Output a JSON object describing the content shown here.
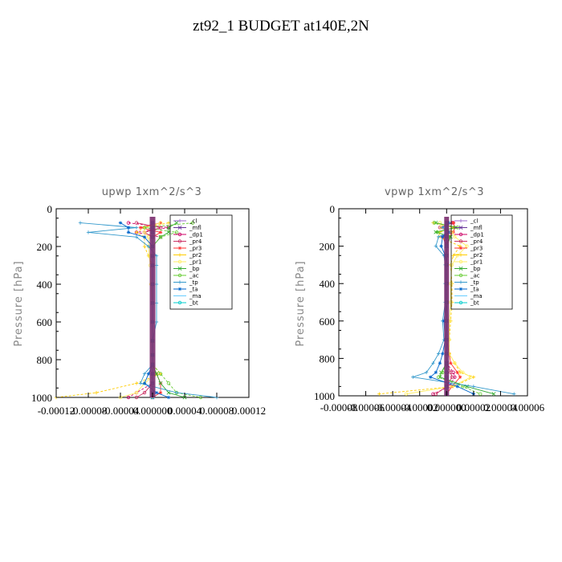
{
  "figure": {
    "title": "zt92_1  BUDGET at140E,2N"
  },
  "chart_data": [
    {
      "type": "line",
      "title": "upwp   1xm^2/s^3",
      "ylabel": "Pressure [hPa]",
      "xlabel": "",
      "xlim": [
        -0.00012,
        0.00012
      ],
      "ylim": [
        1000,
        0
      ],
      "xticks": [
        -0.00012,
        -8e-05,
        -4e-05,
        0,
        4e-05,
        8e-05,
        0.00012
      ],
      "xtick_labels": [
        "-0.00012",
        "-0.00008",
        "-0.00004",
        "0.000000",
        "0.00004",
        "0.00008",
        "0.00012"
      ],
      "yticks": [
        0,
        200,
        400,
        600,
        800,
        1000
      ],
      "ytick_labels": [
        "0",
        "200",
        "400",
        "600",
        "800",
        "1000"
      ],
      "grid": false,
      "legend_position": "top-right",
      "pressure": [
        75,
        100,
        125,
        150,
        200,
        250,
        300,
        400,
        500,
        600,
        700,
        775,
        825,
        875,
        925,
        975,
        1000
      ],
      "series": [
        {
          "name": "_cl",
          "color": "#9966cc",
          "marker": "+",
          "values": [
            0,
            0,
            0,
            0,
            0,
            0,
            0,
            0,
            0,
            0,
            0,
            0,
            0,
            0,
            0,
            0,
            0
          ]
        },
        {
          "name": "_mfl",
          "color": "#663399",
          "marker": "x",
          "values": [
            0,
            0,
            0,
            0,
            0,
            0,
            0,
            0,
            0,
            0,
            0,
            0,
            0,
            0,
            0,
            0,
            0
          ]
        },
        {
          "name": "_dp1",
          "color": "#cc0066",
          "marker": "o",
          "values": [
            -3e-05,
            2e-05,
            -2e-05,
            1e-05,
            0,
            0,
            0,
            0,
            0,
            0,
            0,
            0,
            0,
            0,
            0,
            -2e-05,
            -3e-05
          ]
        },
        {
          "name": "_pr4",
          "color": "#cc3366",
          "marker": "o",
          "values": [
            -2e-05,
            1e-05,
            -1e-05,
            0,
            0,
            0,
            0,
            0,
            0,
            0,
            0,
            0,
            0,
            0,
            0,
            -1e-05,
            -2e-05
          ]
        },
        {
          "name": "_pr3",
          "color": "#ff3333",
          "marker": "*",
          "values": [
            1e-05,
            -1.5e-05,
            1e-05,
            0,
            0,
            0,
            0,
            0,
            0,
            0,
            0,
            0,
            0,
            5e-06,
            1e-05,
            1e-05,
            0
          ]
        },
        {
          "name": "_pr2",
          "color": "#ffcc00",
          "marker": "+",
          "values": [
            2e-05,
            -1e-05,
            -2e-05,
            -1e-05,
            -1e-05,
            -5e-06,
            0,
            0,
            0,
            0,
            0,
            0,
            0,
            1e-05,
            -2e-05,
            -7e-05,
            -0.00012
          ]
        },
        {
          "name": "_pr1",
          "color": "#ffee66",
          "marker": "o",
          "values": [
            1e-05,
            -1e-05,
            -1e-05,
            -5e-06,
            -5e-06,
            -4e-06,
            -3e-06,
            -2e-06,
            0,
            0,
            0,
            0,
            0,
            5e-06,
            -1e-05,
            -2e-05,
            -4e-05
          ]
        },
        {
          "name": "_bp",
          "color": "#33aa33",
          "marker": "x",
          "values": [
            3e-05,
            2e-05,
            2e-05,
            1e-05,
            0,
            0,
            0,
            0,
            0,
            0,
            0,
            0,
            0,
            5e-06,
            1e-05,
            2e-05,
            4e-05
          ]
        },
        {
          "name": "_ac",
          "color": "#66cc33",
          "marker": "o",
          "values": [
            5e-05,
            -1e-05,
            3e-05,
            1e-05,
            0,
            0,
            0,
            0,
            0,
            0,
            0,
            0,
            0,
            1e-05,
            2e-05,
            3e-05,
            6e-05
          ]
        },
        {
          "name": "_tp",
          "color": "#3399cc",
          "marker": "+",
          "values": [
            -9e-05,
            -2e-05,
            -8e-05,
            -2e-05,
            -5e-06,
            5e-06,
            5e-06,
            5e-06,
            5e-06,
            5e-06,
            0,
            0,
            0,
            -1e-05,
            -1.5e-05,
            3e-05,
            8e-05
          ]
        },
        {
          "name": "_ta",
          "color": "#0066cc",
          "marker": "*",
          "values": [
            -4e-05,
            -3e-05,
            -3e-05,
            -1e-05,
            0,
            0,
            0,
            0,
            0,
            0,
            0,
            0,
            0,
            -5e-06,
            -1e-05,
            5e-06,
            2e-05
          ]
        },
        {
          "name": "_ma",
          "color": "#66ccff",
          "marker": "-",
          "values": [
            0,
            0,
            0,
            0,
            0,
            0,
            0,
            0,
            0,
            0,
            0,
            0,
            0,
            0,
            0,
            0,
            0
          ]
        },
        {
          "name": "_bt",
          "color": "#00cccc",
          "marker": "o",
          "values": [
            0,
            0,
            0,
            0,
            0,
            0,
            0,
            0,
            0,
            0,
            0,
            0,
            0,
            0,
            0,
            0,
            0
          ]
        }
      ]
    },
    {
      "type": "line",
      "title": "vpwp   1xm^2/s^3",
      "ylabel": "Pressure [hPa]",
      "xlabel": "",
      "xlim": [
        -8e-05,
        6e-05
      ],
      "ylim": [
        1000,
        0
      ],
      "xticks": [
        -8e-05,
        -6e-05,
        -4e-05,
        -2e-05,
        0,
        2e-05,
        4e-05,
        6e-05
      ],
      "xtick_labels": [
        "-0.00008",
        "-0.00006",
        "-0.00004",
        "-0.00002",
        "0.000000",
        "0.00002",
        "0.00004",
        "0.00006"
      ],
      "yticks": [
        0,
        200,
        400,
        600,
        800,
        1000
      ],
      "ytick_labels": [
        "0",
        "200",
        "400",
        "600",
        "800",
        "1000"
      ],
      "grid": false,
      "legend_position": "top-right",
      "pressure": [
        75,
        100,
        125,
        150,
        200,
        250,
        300,
        400,
        500,
        600,
        700,
        775,
        825,
        875,
        900,
        950,
        990
      ],
      "series": [
        {
          "name": "_cl",
          "color": "#9966cc",
          "marker": "+",
          "values": [
            0,
            0,
            0,
            0,
            0,
            0,
            0,
            0,
            0,
            0,
            0,
            0,
            0,
            0,
            0,
            0,
            0
          ]
        },
        {
          "name": "_mfl",
          "color": "#663399",
          "marker": "x",
          "values": [
            0,
            0,
            0,
            0,
            0,
            0,
            0,
            0,
            0,
            0,
            0,
            0,
            0,
            0,
            0,
            0,
            0
          ]
        },
        {
          "name": "_dp1",
          "color": "#cc0066",
          "marker": "o",
          "values": [
            4e-06,
            -4e-06,
            3e-06,
            -2e-06,
            0,
            0,
            0,
            0,
            0,
            0,
            0,
            0,
            0,
            5e-06,
            6e-06,
            2e-06,
            -1e-05
          ]
        },
        {
          "name": "_pr4",
          "color": "#cc3366",
          "marker": "o",
          "values": [
            5e-06,
            -5e-06,
            4e-06,
            -3e-06,
            0,
            0,
            0,
            0,
            0,
            0,
            0,
            0,
            0,
            3e-06,
            4e-06,
            0,
            -8e-06
          ]
        },
        {
          "name": "_pr3",
          "color": "#ff3333",
          "marker": "*",
          "values": [
            5e-06,
            6e-06,
            5e-06,
            2e-06,
            0,
            0,
            0,
            0,
            0,
            0,
            0,
            2e-06,
            3e-06,
            8e-06,
            1e-05,
            4e-06,
            0
          ]
        },
        {
          "name": "_pr2",
          "color": "#ffcc00",
          "marker": "+",
          "values": [
            -1e-05,
            5e-06,
            -5e-06,
            -6e-06,
            1e-05,
            5e-06,
            3e-06,
            4e-06,
            4e-06,
            3e-06,
            2e-06,
            2e-06,
            6e-06,
            1e-05,
            2e-05,
            5e-06,
            -5e-05
          ]
        },
        {
          "name": "_pr1",
          "color": "#ffee66",
          "marker": "o",
          "values": [
            -5e-06,
            -4e-06,
            4e-06,
            6e-06,
            1.5e-05,
            8e-06,
            4e-06,
            3e-06,
            3e-06,
            2e-06,
            2e-06,
            2e-06,
            6e-06,
            1.2e-05,
            1.8e-05,
            4e-06,
            -3e-05
          ]
        },
        {
          "name": "_bp",
          "color": "#33aa33",
          "marker": "x",
          "values": [
            -8e-06,
            7e-06,
            -8e-06,
            3e-06,
            0,
            0,
            0,
            0,
            0,
            0,
            0,
            0,
            0,
            -4e-06,
            -5e-06,
            1.5e-05,
            3.5e-05
          ]
        },
        {
          "name": "_ac",
          "color": "#66cc33",
          "marker": "o",
          "values": [
            -9e-06,
            8e-06,
            -7e-06,
            2e-06,
            0,
            0,
            0,
            0,
            0,
            0,
            0,
            0,
            0,
            -3e-06,
            -6e-06,
            1.2e-05,
            2.5e-05
          ]
        },
        {
          "name": "_tp",
          "color": "#3399cc",
          "marker": "+",
          "values": [
            2e-06,
            -3e-06,
            2e-06,
            -6e-06,
            -8e-06,
            -2e-06,
            -1e-06,
            -1e-06,
            -1e-06,
            -3e-06,
            -2e-06,
            -6e-06,
            -1e-05,
            -1.5e-05,
            -2.5e-05,
            2e-05,
            5e-05
          ]
        },
        {
          "name": "_ta",
          "color": "#0066cc",
          "marker": "*",
          "values": [
            1e-06,
            0,
            1e-06,
            -3e-06,
            -4e-06,
            -1e-06,
            0,
            0,
            0,
            -2e-06,
            -1e-06,
            -3e-06,
            -5e-06,
            -8e-06,
            -1.2e-05,
            8e-06,
            2e-05
          ]
        },
        {
          "name": "_ma",
          "color": "#66ccff",
          "marker": "-",
          "values": [
            0,
            0,
            0,
            0,
            0,
            0,
            0,
            0,
            0,
            0,
            0,
            0,
            0,
            0,
            0,
            0,
            0
          ]
        },
        {
          "name": "_bt",
          "color": "#00cccc",
          "marker": "o",
          "values": [
            0,
            0,
            0,
            0,
            0,
            0,
            0,
            0,
            0,
            0,
            0,
            0,
            0,
            0,
            0,
            0,
            0
          ]
        }
      ]
    }
  ]
}
